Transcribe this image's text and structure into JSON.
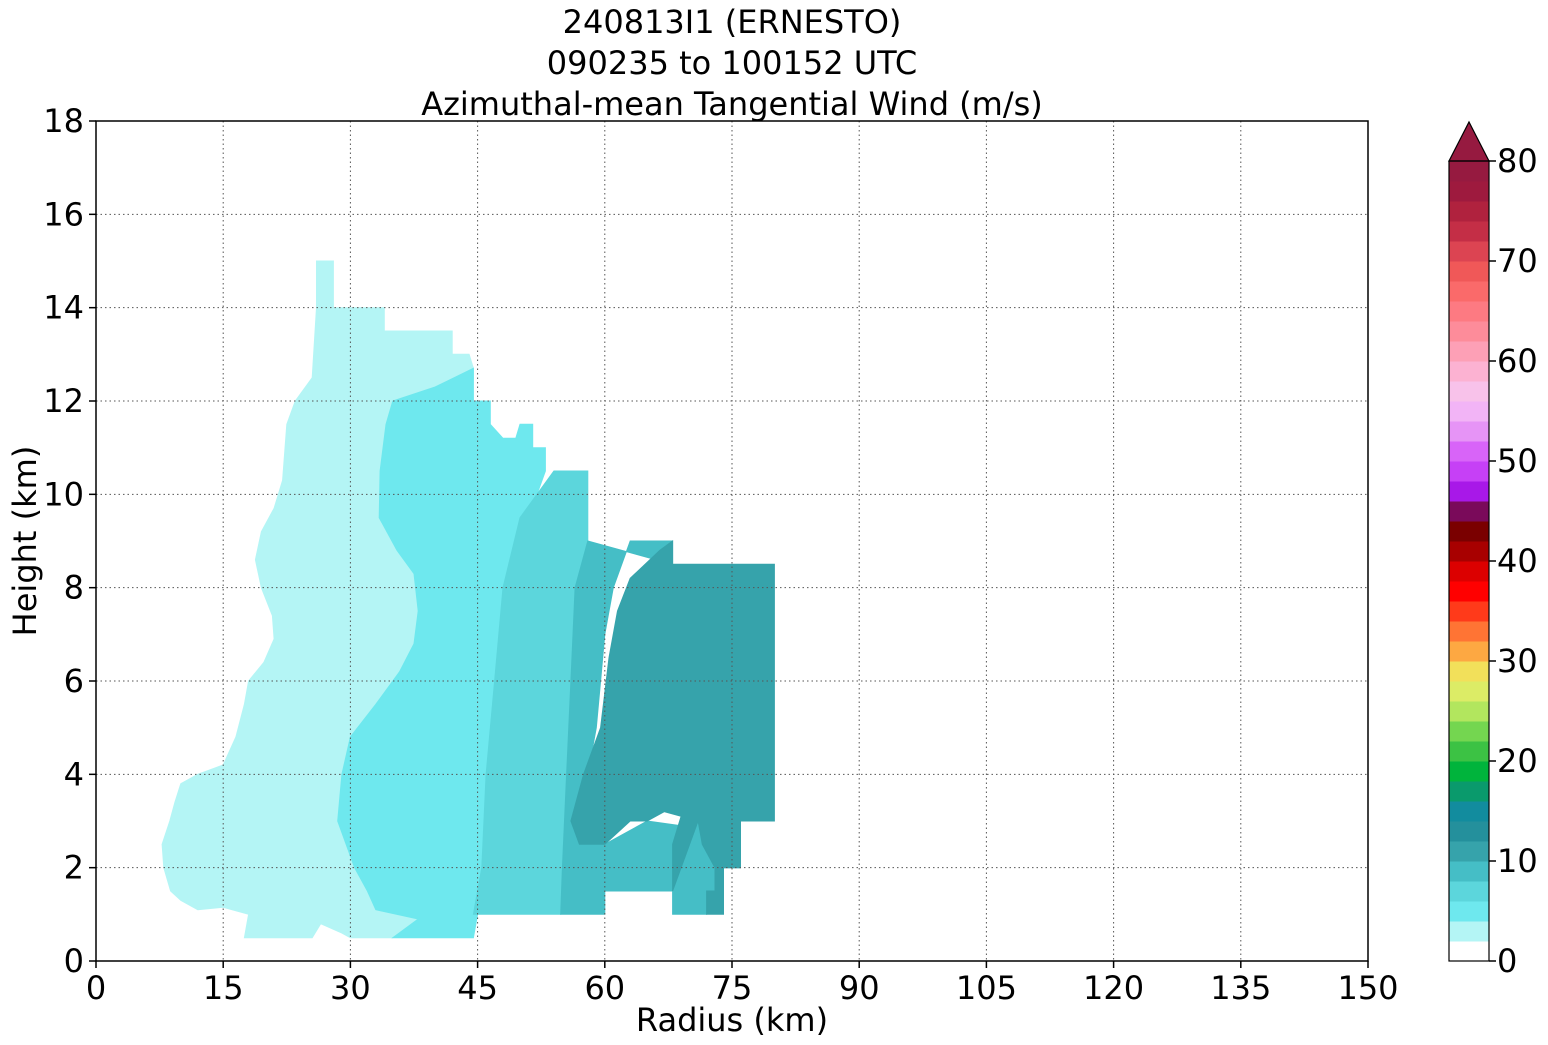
{
  "chart_data": {
    "type": "contour",
    "title_lines": [
      "240813I1 (ERNESTO)",
      "090235 to 100152 UTC",
      "Azimuthal-mean Tangential Wind (m/s)"
    ],
    "xlabel": "Radius (km)",
    "ylabel": "Height (km)",
    "xlim": [
      0,
      150
    ],
    "ylim": [
      0,
      18
    ],
    "xticks": [
      0,
      15,
      30,
      45,
      60,
      75,
      90,
      105,
      120,
      135,
      150
    ],
    "yticks": [
      0,
      2,
      4,
      6,
      8,
      10,
      12,
      14,
      16,
      18
    ],
    "grid": true,
    "contour_regions": [
      {
        "level": "2-4 m/s",
        "color": "#b4f5f5",
        "points": [
          [
            17.5,
            0.5
          ],
          [
            25.5,
            0.5
          ],
          [
            26.5,
            0.8
          ],
          [
            29,
            0.6
          ],
          [
            30,
            0.5
          ],
          [
            35,
            0.5
          ],
          [
            38,
            0.9
          ],
          [
            39,
            1.1
          ],
          [
            40,
            2
          ],
          [
            41,
            4
          ],
          [
            42.5,
            6
          ],
          [
            43.5,
            8
          ],
          [
            44,
            10.5
          ],
          [
            44.5,
            12.5
          ],
          [
            44.5,
            12.7
          ],
          [
            44,
            13
          ],
          [
            42,
            13
          ],
          [
            42,
            13.5
          ],
          [
            34,
            13.5
          ],
          [
            34,
            14
          ],
          [
            28,
            14
          ],
          [
            28,
            15
          ],
          [
            26,
            15
          ],
          [
            26,
            14
          ],
          [
            25.5,
            12.5
          ],
          [
            23.5,
            12
          ],
          [
            22.5,
            11.5
          ],
          [
            22,
            10.3
          ],
          [
            21,
            9.7
          ],
          [
            19.5,
            9.2
          ],
          [
            18.8,
            8.6
          ],
          [
            19.5,
            8
          ],
          [
            20.8,
            7.4
          ],
          [
            21,
            6.9
          ],
          [
            19.8,
            6.4
          ],
          [
            18,
            6
          ],
          [
            17.5,
            5.5
          ],
          [
            16.5,
            4.8
          ],
          [
            15,
            4.2
          ],
          [
            12,
            4
          ],
          [
            10,
            3.8
          ],
          [
            9.3,
            3.4
          ],
          [
            8.7,
            3
          ],
          [
            7.8,
            2.5
          ],
          [
            8,
            2
          ],
          [
            8.8,
            1.5
          ],
          [
            10,
            1.3
          ],
          [
            12,
            1.1
          ],
          [
            15,
            1.15
          ],
          [
            18,
            1
          ]
        ]
      },
      {
        "level": "4-6 m/s",
        "color": "#6ee8ee",
        "points": [
          [
            35,
            0.5
          ],
          [
            44.5,
            0.5
          ],
          [
            45,
            1
          ],
          [
            45.5,
            2
          ],
          [
            46,
            4
          ],
          [
            47,
            6
          ],
          [
            48,
            8
          ],
          [
            50,
            9.5
          ],
          [
            52,
            10
          ],
          [
            53,
            10.5
          ],
          [
            53,
            11
          ],
          [
            51.5,
            11
          ],
          [
            51.5,
            11.5
          ],
          [
            50,
            11.5
          ],
          [
            49.5,
            11.2
          ],
          [
            48,
            11.2
          ],
          [
            46.5,
            11.5
          ],
          [
            46.5,
            12
          ],
          [
            44.5,
            12
          ],
          [
            44.5,
            12.7
          ],
          [
            40,
            12.3
          ],
          [
            35,
            12
          ],
          [
            34.2,
            11.5
          ],
          [
            33.5,
            10.5
          ],
          [
            33.4,
            9.5
          ],
          [
            35.5,
            8.8
          ],
          [
            37.5,
            8.3
          ],
          [
            38,
            7.5
          ],
          [
            37.5,
            6.8
          ],
          [
            35.8,
            6.2
          ],
          [
            33,
            5.5
          ],
          [
            30,
            4.8
          ],
          [
            29,
            4
          ],
          [
            28.5,
            3
          ],
          [
            30.5,
            2
          ],
          [
            32,
            1.5
          ],
          [
            33,
            1.1
          ],
          [
            38,
            0.9
          ]
        ]
      },
      {
        "level": "6-8 m/s",
        "color": "#5cd6dc",
        "points": [
          [
            44.5,
            1
          ],
          [
            54.8,
            1
          ],
          [
            55,
            2
          ],
          [
            55.5,
            4
          ],
          [
            56,
            6
          ],
          [
            56.5,
            8
          ],
          [
            58,
            9
          ],
          [
            58,
            10.5
          ],
          [
            54,
            10.5
          ],
          [
            52,
            10
          ],
          [
            50,
            9.5
          ],
          [
            48,
            8
          ],
          [
            47,
            6
          ],
          [
            46,
            4
          ],
          [
            45.5,
            2
          ]
        ]
      },
      {
        "level": "8-10 m/s",
        "color": "#45bec6",
        "points": [
          [
            54.8,
            1
          ],
          [
            60,
            1
          ],
          [
            60,
            1.5
          ],
          [
            68,
            1.5
          ],
          [
            68,
            1
          ],
          [
            72,
            1
          ],
          [
            72,
            1.5
          ],
          [
            74,
            1.5
          ],
          [
            74,
            2
          ],
          [
            76,
            2
          ],
          [
            76,
            3
          ],
          [
            73,
            3
          ],
          [
            71,
            3.2
          ],
          [
            69,
            2.9
          ],
          [
            65,
            3
          ],
          [
            60,
            2.5
          ],
          [
            57,
            2.5
          ],
          [
            56,
            3
          ],
          [
            58,
            4
          ],
          [
            59,
            5
          ],
          [
            59.5,
            6
          ],
          [
            60,
            7
          ],
          [
            61,
            8
          ],
          [
            63,
            9
          ],
          [
            68,
            9
          ],
          [
            68,
            8.5
          ],
          [
            58,
            9
          ],
          [
            56.5,
            8
          ],
          [
            56,
            6
          ],
          [
            55.5,
            4
          ],
          [
            55,
            2
          ]
        ]
      },
      {
        "level": "10-12 m/s",
        "color": "#36a3ab",
        "points": [
          [
            68,
            1.5
          ],
          [
            70,
            2.5
          ],
          [
            71,
            3
          ],
          [
            71.5,
            2.5
          ],
          [
            73,
            2
          ],
          [
            73,
            1.5
          ],
          [
            72,
            1.5
          ],
          [
            72,
            1
          ],
          [
            74,
            1
          ],
          [
            74,
            2
          ],
          [
            76,
            2
          ],
          [
            76,
            3
          ],
          [
            80,
            3
          ],
          [
            80,
            8.5
          ],
          [
            68,
            8.5
          ],
          [
            68,
            9
          ],
          [
            66.5,
            8.8
          ],
          [
            63,
            8.2
          ],
          [
            61.5,
            7.5
          ],
          [
            60.5,
            6.5
          ],
          [
            59.5,
            5
          ],
          [
            57.5,
            4
          ],
          [
            56,
            3
          ],
          [
            57,
            2.5
          ],
          [
            60,
            2.5
          ],
          [
            63,
            3
          ],
          [
            65,
            3
          ],
          [
            67,
            3.2
          ],
          [
            69,
            3.1
          ],
          [
            68,
            2.5
          ],
          [
            68,
            1.5
          ]
        ]
      }
    ],
    "colorbar": {
      "min": 0,
      "max": 80,
      "step": 2,
      "extend": "max",
      "ticks": [
        0,
        10,
        20,
        30,
        40,
        50,
        60,
        70,
        80
      ],
      "colors": [
        "#ffffff",
        "#b4f5f5",
        "#6ee8ee",
        "#5cd6dc",
        "#45bec6",
        "#36a3ab",
        "#24909c",
        "#128c9e",
        "#0a9a6c",
        "#00b43c",
        "#3cc244",
        "#74d650",
        "#b2e65e",
        "#dcec66",
        "#f2e05a",
        "#fda842",
        "#ff7434",
        "#ff3a1a",
        "#ff0000",
        "#dc0000",
        "#a80000",
        "#7a0000",
        "#7a0a5a",
        "#a818e8",
        "#c640f6",
        "#d864f8",
        "#e694f6",
        "#f2b4f6",
        "#f8c2ea",
        "#fcb2d2",
        "#fda0b6",
        "#fd8c9a",
        "#fd7a82",
        "#fa6a6a",
        "#f05858",
        "#dc4452",
        "#c42e46",
        "#b0223e",
        "#9e1a3e",
        "#961a40"
      ]
    }
  }
}
